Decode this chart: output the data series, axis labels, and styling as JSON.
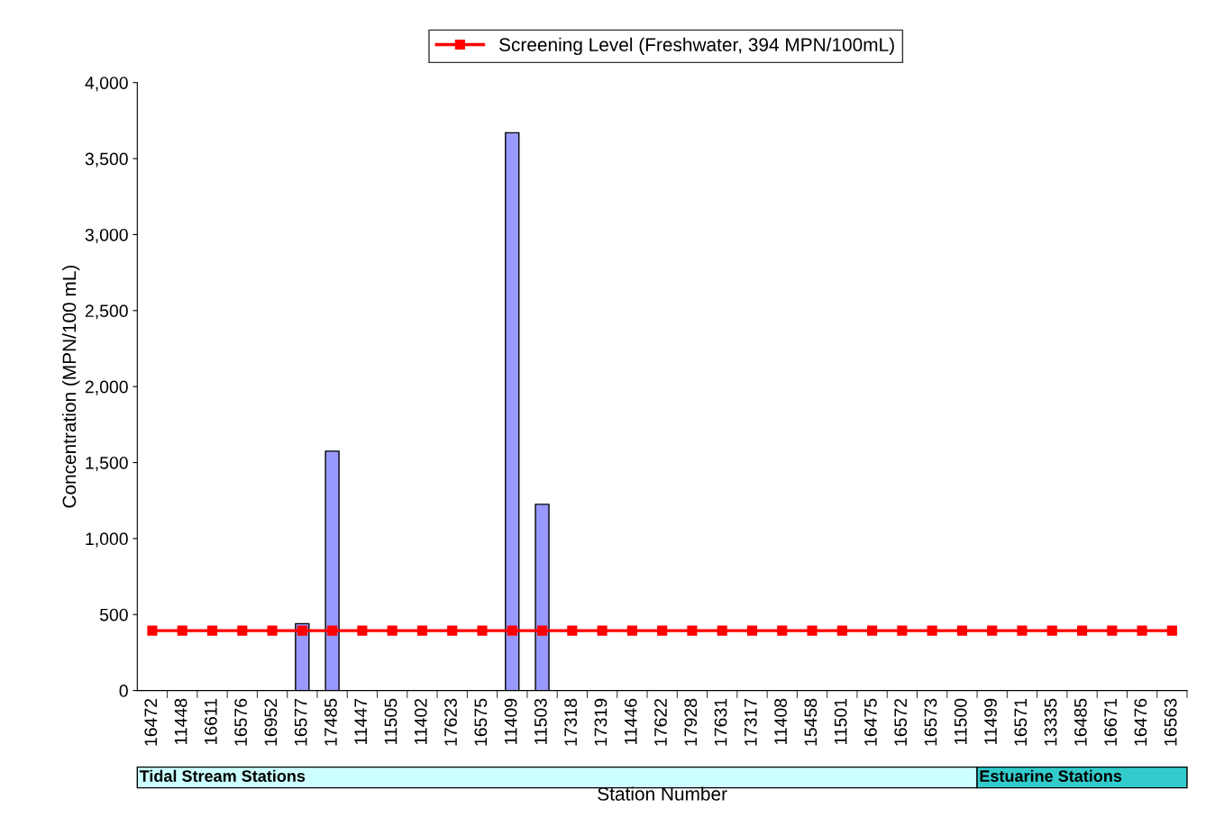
{
  "chart_data": {
    "type": "bar",
    "xlabel": "Station Number",
    "ylabel": "Concentration (MPN/100 mL)",
    "categories": [
      "16472",
      "11448",
      "16611",
      "16576",
      "16952",
      "16577",
      "17485",
      "11447",
      "11505",
      "11402",
      "17623",
      "16575",
      "11409",
      "11503",
      "17318",
      "17319",
      "11446",
      "17622",
      "17928",
      "17631",
      "17317",
      "11408",
      "15458",
      "11501",
      "16475",
      "16572",
      "16573",
      "11500",
      "11499",
      "16571",
      "13335",
      "16485",
      "16671",
      "16476",
      "16563"
    ],
    "series": [
      {
        "color": "#9999ff",
        "values": [
          null,
          null,
          null,
          null,
          null,
          440,
          1575,
          null,
          null,
          null,
          null,
          null,
          3670,
          1225,
          null,
          null,
          null,
          null,
          null,
          null,
          null,
          null,
          null,
          null,
          null,
          null,
          null,
          null,
          null,
          null,
          null,
          null,
          null,
          null,
          null
        ]
      },
      {
        "type": "line",
        "name": "Screening Level (Freshwater, 394 MPN/100mL)",
        "color": "#ff0000",
        "marker": "square",
        "values": [
          394,
          394,
          394,
          394,
          394,
          394,
          394,
          394,
          394,
          394,
          394,
          394,
          394,
          394,
          394,
          394,
          394,
          394,
          394,
          394,
          394,
          394,
          394,
          394,
          394,
          394,
          394,
          394,
          394,
          394,
          394,
          394,
          394,
          394,
          394
        ]
      }
    ],
    "annotations": [
      "Tidal Stream Stations",
      "Estuarine Stations"
    ],
    "ylim": [
      0,
      4000
    ],
    "yticks": [
      {
        "value": 0,
        "label": "0"
      },
      {
        "value": 500,
        "label": "500"
      },
      {
        "value": 1000,
        "label": "1,000"
      },
      {
        "value": 1500,
        "label": "1,500"
      },
      {
        "value": 2000,
        "label": "2,000"
      },
      {
        "value": 2500,
        "label": "2,500"
      },
      {
        "value": 3000,
        "label": "3,000"
      },
      {
        "value": 3500,
        "label": "3,500"
      },
      {
        "value": 4000,
        "label": "4,000"
      }
    ],
    "grid": false,
    "legend": "top"
  }
}
